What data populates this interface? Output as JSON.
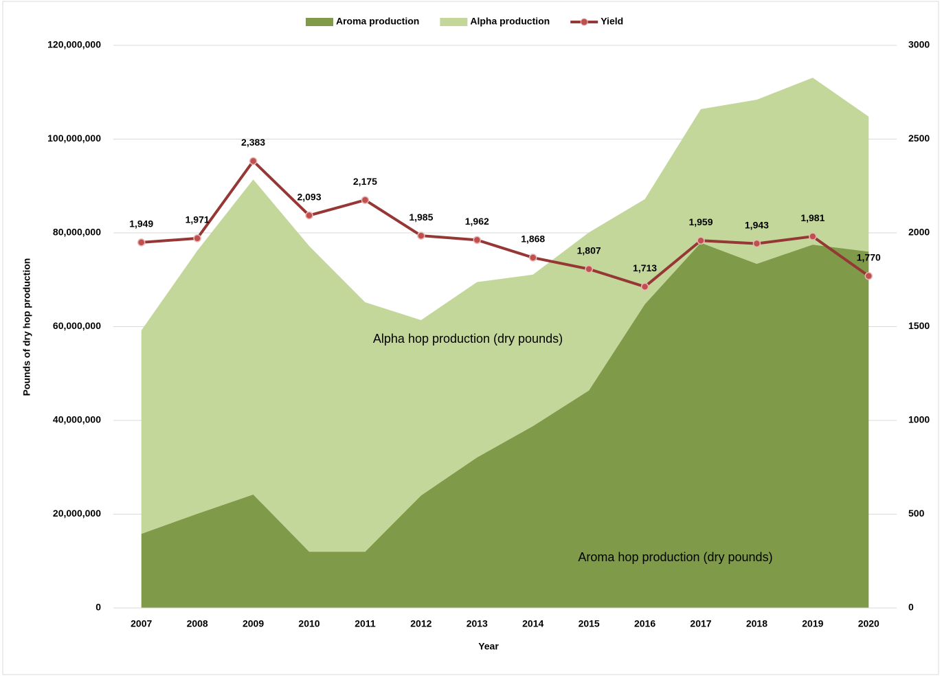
{
  "chart_data": {
    "type": "area_line",
    "x_label": "Year",
    "y_label": "Pounds of dry hop production",
    "categories": [
      "2007",
      "2008",
      "2009",
      "2010",
      "2011",
      "2012",
      "2013",
      "2014",
      "2015",
      "2016",
      "2017",
      "2018",
      "2019",
      "2020"
    ],
    "series": [
      {
        "name": "Aroma production",
        "type": "area",
        "stacked": true,
        "color": "#7f9a48",
        "values": [
          15800000,
          20100000,
          24200000,
          12000000,
          12000000,
          24000000,
          32100000,
          38800000,
          46400000,
          64800000,
          77900000,
          73400000,
          77500000,
          76000000
        ]
      },
      {
        "name": "Alpha production",
        "type": "area",
        "stacked": true,
        "color": "#c4d79b",
        "values": [
          43400000,
          56100000,
          67200000,
          65200000,
          53200000,
          37400000,
          37400000,
          32300000,
          33700000,
          22400000,
          28500000,
          35000000,
          35600000,
          28800000
        ]
      },
      {
        "name": "Yield",
        "type": "line",
        "axis": "y2",
        "color": "#953735",
        "marker_color": "#c0504d",
        "values": [
          1949,
          1971,
          2383,
          2093,
          2175,
          1985,
          1962,
          1868,
          1807,
          1713,
          1959,
          1943,
          1981,
          1770
        ],
        "value_labels": [
          "1,949",
          "1,971",
          "2,383",
          "2,093",
          "2,175",
          "1,985",
          "1,962",
          "1,868",
          "1,807",
          "1,713",
          "1,959",
          "1,943",
          "1,981",
          "1,770"
        ]
      }
    ],
    "annotations": [
      "Alpha hop production (dry pounds)",
      "Aroma hop production (dry pounds)"
    ],
    "ylim": [
      0,
      120000000
    ],
    "yticks": [
      0,
      {
        "value": 20000000,
        "label": "20,000,000"
      },
      {
        "value": 40000000,
        "label": "40,000,000"
      },
      {
        "value": 60000000,
        "label": "60,000,000"
      },
      {
        "value": 80000000,
        "label": "80,000,000"
      },
      {
        "value": 100000000,
        "label": "100,000,000"
      },
      {
        "value": 120000000,
        "label": "120,000,000"
      }
    ],
    "y2lim": [
      0,
      3000
    ],
    "y2ticks": [
      0,
      500,
      1000,
      1500,
      2000,
      2500,
      3000
    ],
    "grid": true,
    "legend": "top"
  }
}
